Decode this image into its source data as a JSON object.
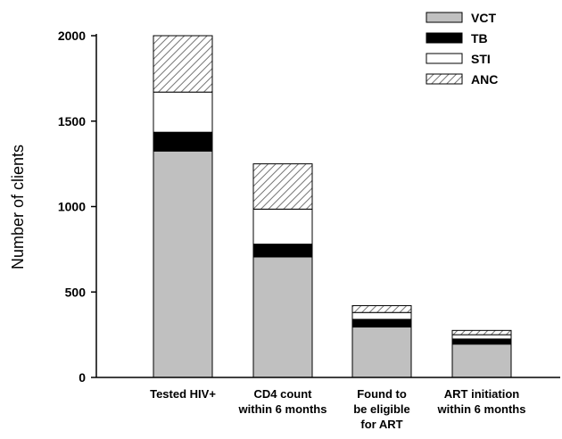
{
  "chart_data": {
    "type": "bar",
    "stacked": true,
    "title": "",
    "xlabel": "",
    "ylabel": "Number of clients",
    "ylim": [
      0,
      2000
    ],
    "yticks": [
      0,
      500,
      1000,
      1500,
      2000
    ],
    "categories": [
      [
        "Tested HIV+"
      ],
      [
        "CD4 count",
        "within 6 months"
      ],
      [
        "Found to",
        "be eligible",
        "for ART"
      ],
      [
        "ART initiation",
        "within 6 months"
      ]
    ],
    "series": [
      {
        "name": "VCT",
        "color": "#c0c0c0",
        "pattern": "solid",
        "values": [
          1325,
          705,
          295,
          195
        ]
      },
      {
        "name": "TB",
        "color": "#000000",
        "pattern": "solid",
        "values": [
          110,
          75,
          45,
          30
        ]
      },
      {
        "name": "STI",
        "color": "#ffffff",
        "pattern": "solid",
        "values": [
          235,
          205,
          40,
          25
        ]
      },
      {
        "name": "ANC",
        "color": "#ffffff",
        "pattern": "hatch",
        "values": [
          330,
          265,
          40,
          25
        ]
      }
    ],
    "legend_position": "top-right",
    "grid": false
  }
}
